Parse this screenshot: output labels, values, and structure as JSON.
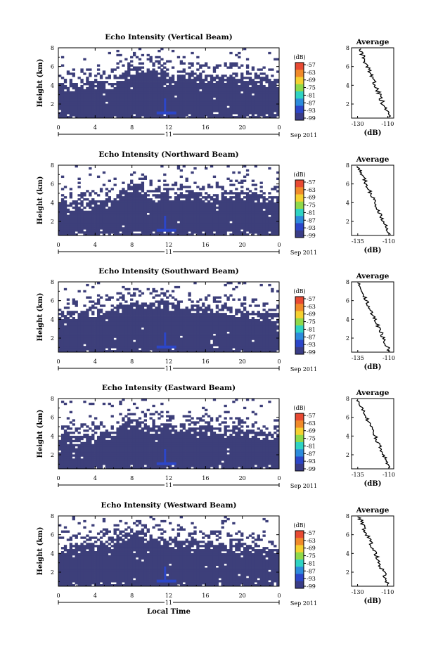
{
  "colorbar_unit": "(dB)",
  "colorbar_ticks": [
    "-57",
    "-63",
    "-69",
    "-75",
    "-81",
    "-87",
    "-93",
    "-99"
  ],
  "colorbar_colors": [
    "#e84a33",
    "#f08a2a",
    "#f5d030",
    "#8fd94a",
    "#2fd3c3",
    "#2d8bdc",
    "#2c46c8",
    "#3a3d86"
  ],
  "echo_color": "#3d3f7a",
  "main_x_ticks": [
    "0",
    "4",
    "8",
    "12",
    "16",
    "20",
    "0"
  ],
  "main_y_ticks": [
    "2",
    "4",
    "6",
    "8"
  ],
  "y_label": "Height (km)",
  "x_label": "Local Time",
  "day_label": "11",
  "month_label": "Sep 2011",
  "average_title": "Average",
  "average_unit": "(dB)",
  "chart_data": [
    {
      "type": "heatmap",
      "title": "Echo Intensity (Vertical Beam)",
      "xlabel": "",
      "ylabel": "Height (km)",
      "xlim": [
        0,
        24
      ],
      "ylim": [
        0.5,
        8
      ],
      "colorbar": {
        "unit": "(dB)",
        "range": [
          -99,
          -57
        ]
      },
      "echo_top_km": [
        4.0,
        4.1,
        4.0,
        4.2,
        4.1,
        4.3,
        4.2,
        5.0,
        5.6,
        5.9,
        5.6,
        5.5,
        5.0,
        5.1,
        5.2,
        4.9,
        4.8,
        4.7,
        4.9,
        4.8,
        4.6,
        4.5,
        4.6,
        4.4,
        4.5
      ],
      "average": {
        "title": "Average",
        "xlabel": "(dB)",
        "xticks": [
          "-130",
          "-110"
        ],
        "yticks": [
          "2",
          "4",
          "6",
          "8"
        ],
        "xlim": [
          -134,
          -106
        ],
        "ylim": [
          0.5,
          8
        ]
      }
    },
    {
      "type": "heatmap",
      "title": "Echo Intensity (Northward Beam)",
      "xlabel": "",
      "ylabel": "Height (km)",
      "xlim": [
        0,
        24
      ],
      "ylim": [
        0.5,
        8
      ],
      "colorbar": {
        "unit": "(dB)",
        "range": [
          -99,
          -57
        ]
      },
      "echo_top_km": [
        3.8,
        3.9,
        3.7,
        3.8,
        3.9,
        4.0,
        4.2,
        5.2,
        5.8,
        5.6,
        5.0,
        4.5,
        4.6,
        4.8,
        5.0,
        4.9,
        4.7,
        4.6,
        4.8,
        4.9,
        5.0,
        4.7,
        4.5,
        4.4,
        4.3
      ],
      "average": {
        "title": "Average",
        "xlabel": "(dB)",
        "xticks": [
          "-135",
          "-110"
        ],
        "yticks": [
          "2",
          "4",
          "6",
          "8"
        ],
        "xlim": [
          -140,
          -106
        ],
        "ylim": [
          0.5,
          8
        ]
      }
    },
    {
      "type": "heatmap",
      "title": "Echo Intensity (Southward Beam)",
      "xlabel": "",
      "ylabel": "Height (km)",
      "xlim": [
        0,
        24
      ],
      "ylim": [
        0.5,
        8
      ],
      "colorbar": {
        "unit": "(dB)",
        "range": [
          -99,
          -57
        ]
      },
      "echo_top_km": [
        4.5,
        4.6,
        4.5,
        4.8,
        4.9,
        4.7,
        5.0,
        5.6,
        5.9,
        5.5,
        5.4,
        5.8,
        5.6,
        5.4,
        5.3,
        5.2,
        5.0,
        5.1,
        5.2,
        4.9,
        4.8,
        4.6,
        4.5,
        4.4,
        4.3
      ],
      "average": {
        "title": "Average",
        "xlabel": "(dB)",
        "xticks": [
          "-135",
          "-110"
        ],
        "yticks": [
          "2",
          "4",
          "6",
          "8"
        ],
        "xlim": [
          -140,
          -106
        ],
        "ylim": [
          0.5,
          8
        ]
      }
    },
    {
      "type": "heatmap",
      "title": "Echo Intensity (Eastward Beam)",
      "xlabel": "",
      "ylabel": "Height (km)",
      "xlim": [
        0,
        24
      ],
      "ylim": [
        0.5,
        8
      ],
      "colorbar": {
        "unit": "(dB)",
        "range": [
          -99,
          -57
        ]
      },
      "echo_top_km": [
        3.8,
        3.8,
        3.7,
        3.9,
        4.0,
        4.1,
        4.3,
        5.0,
        5.6,
        5.3,
        4.9,
        4.8,
        5.0,
        4.9,
        4.6,
        4.7,
        4.8,
        4.5,
        4.6,
        4.7,
        4.4,
        4.5,
        4.3,
        4.2,
        4.1
      ],
      "average": {
        "title": "Average",
        "xlabel": "(dB)",
        "xticks": [
          "-135",
          "-110"
        ],
        "yticks": [
          "2",
          "4",
          "6",
          "8"
        ],
        "xlim": [
          -140,
          -106
        ],
        "ylim": [
          0.5,
          8
        ]
      }
    },
    {
      "type": "heatmap",
      "title": "Echo Intensity (Westward Beam)",
      "xlabel": "Local Time",
      "ylabel": "Height (km)",
      "xlim": [
        0,
        24
      ],
      "ylim": [
        0.5,
        8
      ],
      "colorbar": {
        "unit": "(dB)",
        "range": [
          -99,
          -57
        ]
      },
      "echo_top_km": [
        4.2,
        4.5,
        4.6,
        4.7,
        4.9,
        5.0,
        5.4,
        5.8,
        6.1,
        5.8,
        5.7,
        5.5,
        5.1,
        5.0,
        5.2,
        5.0,
        4.8,
        4.9,
        4.7,
        4.6,
        4.8,
        4.6,
        4.5,
        4.4,
        4.5
      ],
      "average": {
        "title": "Average",
        "xlabel": "(dB)",
        "xticks": [
          "-130",
          "-110"
        ],
        "yticks": [
          "2",
          "4",
          "6",
          "8"
        ],
        "xlim": [
          -134,
          -106
        ],
        "ylim": [
          0.5,
          8
        ]
      }
    }
  ]
}
